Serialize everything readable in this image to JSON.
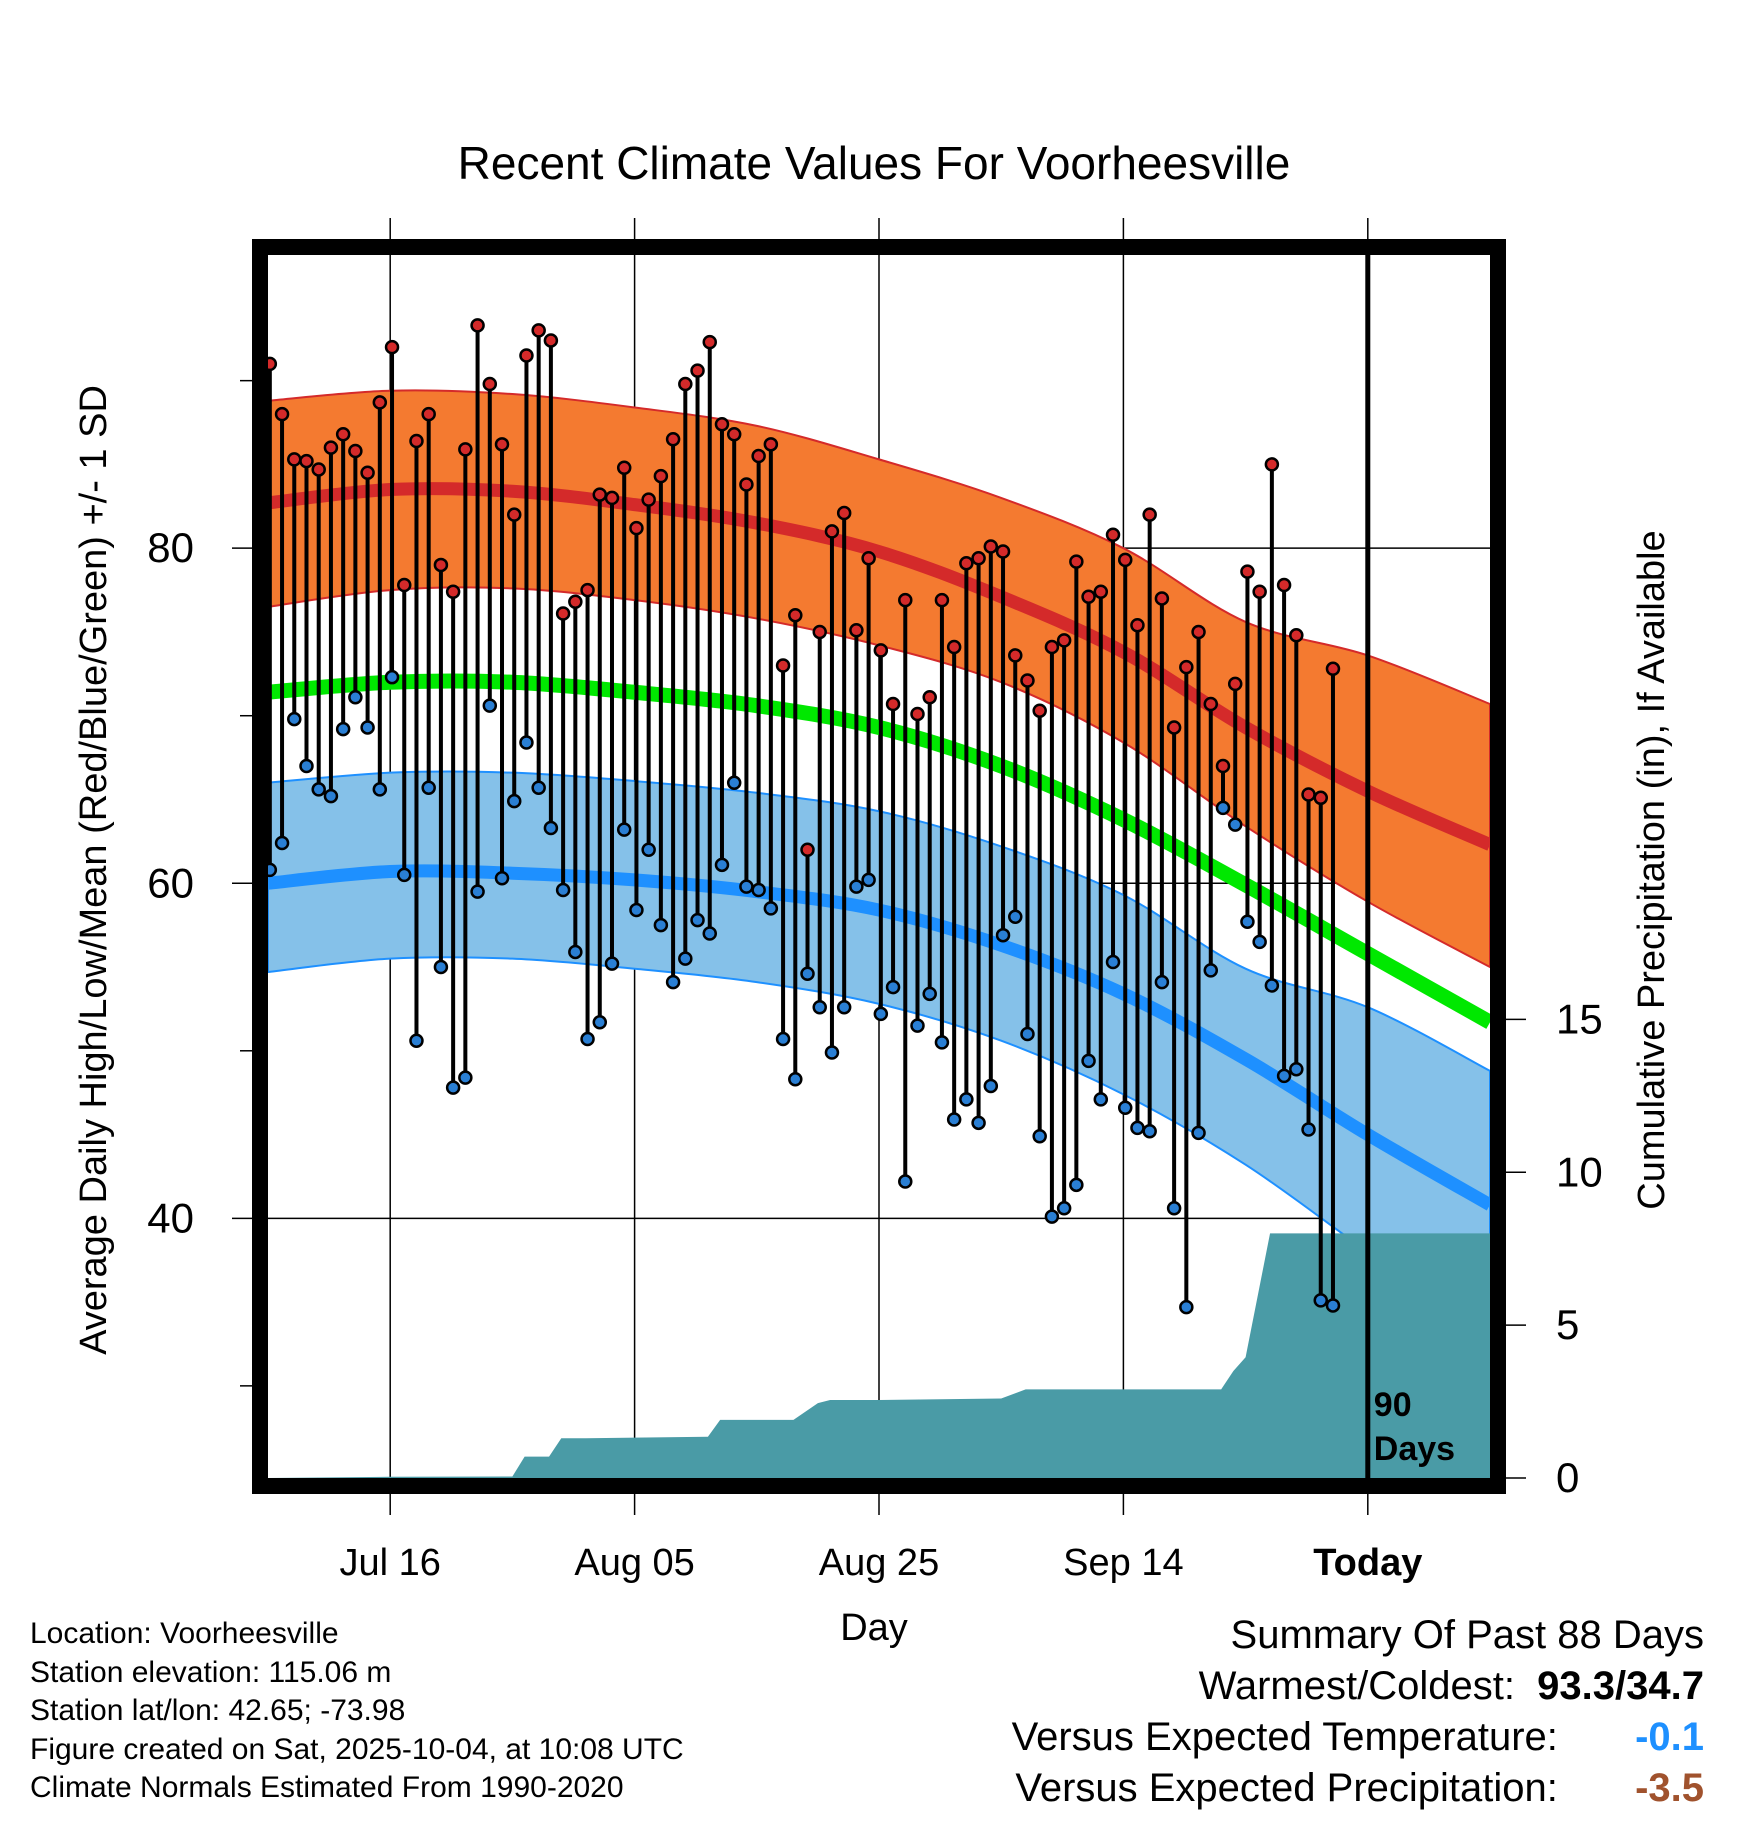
{
  "chart_data": {
    "type": "line",
    "title": "Recent Climate Values For Voorheesville",
    "xlabel": "Day",
    "ylabel": "Average Daily High/Low/Mean (Red/Blue/Green) +/- 1 SD",
    "y2label": "Cumulative Precipitation (in), If Available",
    "x_day_range": [
      0,
      100
    ],
    "today_day": 90,
    "today_marker_label": "90 Days",
    "ylim": [
      24.5,
      97.5
    ],
    "y_ticks": [
      40,
      60,
      80
    ],
    "y_minor_ticks": [
      30,
      50,
      70,
      90
    ],
    "y2lim": [
      0,
      40
    ],
    "y2_ticks": [
      0,
      5,
      10,
      15
    ],
    "x_ticks": [
      {
        "day": 10,
        "label": "Jul 16"
      },
      {
        "day": 30,
        "label": "Aug 05"
      },
      {
        "day": 50,
        "label": "Aug 25"
      },
      {
        "day": 70,
        "label": "Sep 14"
      },
      {
        "day": 90,
        "label": "Today"
      }
    ],
    "normals": {
      "days": [
        0,
        10,
        20,
        30,
        40,
        50,
        60,
        70,
        80,
        90,
        100
      ],
      "high_mean": [
        82.7,
        83.5,
        83.4,
        82.6,
        81.5,
        79.8,
        77.1,
        73.8,
        69.3,
        65.5,
        62.3
      ],
      "high_upper": [
        88.8,
        89.4,
        89.2,
        88.4,
        87.3,
        85.3,
        83.0,
        80.0,
        75.6,
        73.6,
        70.7
      ],
      "high_lower": [
        76.5,
        77.5,
        77.6,
        76.9,
        75.8,
        74.2,
        72.0,
        68.4,
        63.4,
        58.9,
        55.0
      ],
      "avg_mean": [
        71.4,
        72.0,
        72.0,
        71.4,
        70.6,
        69.3,
        67.0,
        63.8,
        59.9,
        55.8,
        51.7
      ],
      "low_mean": [
        60.0,
        60.7,
        60.6,
        60.2,
        59.5,
        58.4,
        56.3,
        53.4,
        49.5,
        45.0,
        40.8
      ],
      "low_upper": [
        66.0,
        66.6,
        66.6,
        66.1,
        65.4,
        64.3,
        62.2,
        59.3,
        54.9,
        52.6,
        48.8
      ],
      "low_lower": [
        54.7,
        55.5,
        55.5,
        54.9,
        54.1,
        52.8,
        50.6,
        47.4,
        43.2,
        38.0,
        33.0
      ]
    },
    "series": [
      {
        "name": "Daily High",
        "color": "#d42a2a",
        "values": [
          91.0,
          88.0,
          85.3,
          85.2,
          84.7,
          86.0,
          86.8,
          85.8,
          84.5,
          88.7,
          92.0,
          77.8,
          86.4,
          88.0,
          79.0,
          77.4,
          85.9,
          93.3,
          89.8,
          86.2,
          82.0,
          91.5,
          93.0,
          92.4,
          76.1,
          76.8,
          77.5,
          83.2,
          83.0,
          84.8,
          81.2,
          82.9,
          84.3,
          86.5,
          89.8,
          90.6,
          92.3,
          87.4,
          86.8,
          83.8,
          85.5,
          86.2,
          73.0,
          76.0,
          62.0,
          75.0,
          81.0,
          82.1,
          75.1,
          79.4,
          73.9,
          70.7,
          76.9,
          70.1,
          71.1,
          76.9,
          74.1,
          79.1,
          79.4,
          80.1,
          79.8,
          73.6,
          72.1,
          70.3,
          74.1,
          74.5,
          79.2,
          77.1,
          77.4,
          80.8,
          79.3,
          75.4,
          82.0,
          77.0,
          69.3,
          72.9,
          75.0,
          70.7,
          67.0,
          71.9,
          78.6,
          77.4,
          85.0,
          77.8,
          74.8,
          65.3,
          65.1,
          72.8
        ]
      },
      {
        "name": "Daily Low",
        "color": "#2a7fd4",
        "values": [
          60.8,
          62.4,
          69.8,
          67.0,
          65.6,
          65.2,
          69.2,
          71.1,
          69.3,
          65.6,
          72.3,
          60.5,
          50.6,
          65.7,
          55.0,
          47.8,
          48.4,
          59.5,
          70.6,
          60.3,
          64.9,
          68.4,
          65.7,
          63.3,
          59.6,
          55.9,
          50.7,
          51.7,
          55.2,
          63.2,
          58.4,
          62.0,
          57.5,
          54.1,
          55.5,
          57.8,
          57.0,
          61.1,
          66.0,
          59.8,
          59.6,
          58.5,
          50.7,
          48.3,
          54.6,
          52.6,
          49.9,
          52.6,
          59.8,
          60.2,
          52.2,
          53.8,
          42.2,
          51.5,
          53.4,
          50.5,
          45.9,
          47.1,
          45.7,
          47.9,
          56.9,
          58.0,
          51.0,
          44.9,
          40.1,
          40.6,
          42.0,
          49.4,
          47.1,
          55.3,
          46.6,
          45.4,
          45.2,
          54.1,
          40.6,
          34.7,
          45.1,
          54.8,
          64.5,
          63.5,
          57.7,
          56.5,
          53.9,
          48.5,
          48.9,
          45.3,
          35.1,
          34.8
        ]
      }
    ],
    "precip_cumulative": {
      "days": [
        0,
        10,
        20,
        21,
        23,
        24,
        26,
        36,
        37,
        39,
        43,
        45,
        46,
        50,
        60,
        62,
        78,
        79,
        80,
        82,
        100
      ],
      "values": [
        0,
        0.04,
        0.05,
        0.7,
        0.7,
        1.3,
        1.3,
        1.35,
        1.9,
        1.9,
        1.9,
        2.45,
        2.55,
        2.55,
        2.6,
        2.9,
        2.9,
        3.5,
        3.95,
        8.0,
        8.0
      ]
    }
  },
  "colors": {
    "high_band": "#f47a30",
    "high_line": "#d42a2a",
    "mean_line": "#00e800",
    "low_band": "#85c1e9",
    "low_line": "#1e90ff",
    "precip": "#4a9ba6"
  },
  "info": {
    "location": "Location: Voorheesville",
    "elevation": "Station elevation: 115.06 m",
    "latlon": "Station lat/lon: 42.65; -73.98",
    "created": "Figure created on Sat, 2025-10-04, at 10:08 UTC",
    "normals": "Climate Normals Estimated From 1990-2020"
  },
  "summary": {
    "title": "Summary Of Past 88 Days",
    "warm_cold_label": "Warmest/Coldest:",
    "warm_cold_value": "93.3/34.7",
    "temp_label": "Versus Expected Temperature:",
    "temp_value": "-0.1",
    "temp_color": "#1e90ff",
    "precip_label": "Versus Expected Precipitation:",
    "precip_value": "-3.5",
    "precip_color": "#a0522d"
  }
}
